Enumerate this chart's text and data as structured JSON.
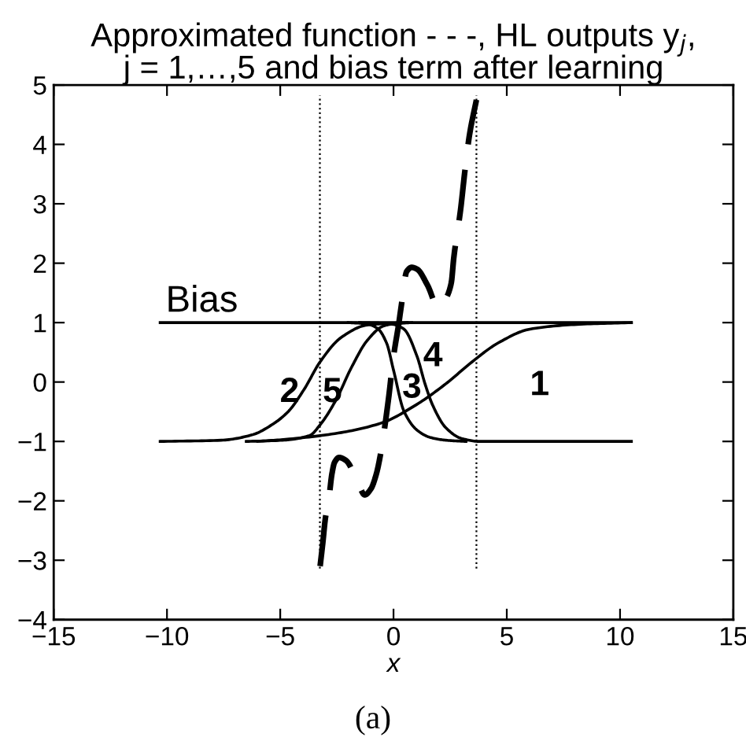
{
  "chart_data": {
    "type": "line",
    "title": "Approximated function - - -, HL outputs y$_{j}$,\nj = 1,…,5 and bias term after learning",
    "xlabel": "x",
    "xlim": [
      -15,
      15
    ],
    "xticks": [
      -15,
      -10,
      -5,
      0,
      5,
      10,
      15
    ],
    "ylim": [
      -4,
      5
    ],
    "yticks": [
      -4,
      -3,
      -2,
      -1,
      0,
      1,
      2,
      3,
      4,
      5
    ],
    "annotations": [
      "(a)"
    ],
    "series": [
      {
        "name": "Bias",
        "color": "#000000",
        "line_style": "solid",
        "x": [
          -10.3,
          10.5
        ],
        "values": [
          1,
          1
        ]
      },
      {
        "name": "1",
        "color": "#000000",
        "line_style": "solid",
        "x": [
          -6,
          -4.6,
          -2.3,
          -0.46,
          0.93,
          2.31,
          3.47,
          4.63,
          6.02,
          8.1,
          10.5
        ],
        "values": [
          -1,
          -0.96,
          -0.85,
          -0.68,
          -0.4,
          -0.03,
          0.34,
          0.66,
          0.89,
          0.97,
          1
        ]
      },
      {
        "name": "2",
        "color": "#000000",
        "line_style": "solid",
        "x": [
          -10.3,
          -7.6,
          -6.25,
          -5.33,
          -4.63,
          -3.94,
          -3.24,
          -2.31,
          -1.16,
          0,
          0.6
        ],
        "values": [
          -1,
          -0.98,
          -0.89,
          -0.71,
          -0.49,
          -0.12,
          0.34,
          0.75,
          0.96,
          0.99,
          1
        ]
      },
      {
        "name": "3",
        "color": "#000000",
        "line_style": "solid",
        "x": [
          -2,
          -1.2,
          -0.7,
          -0.3,
          0,
          0.46,
          1.04,
          1.6,
          2.31,
          3.2
        ],
        "values": [
          1,
          0.98,
          0.9,
          0.65,
          0.2,
          -0.49,
          -0.81,
          -0.93,
          -0.98,
          -1
        ]
      },
      {
        "name": "4",
        "color": "#000000",
        "line_style": "solid",
        "x": [
          -1.5,
          -0.5,
          0,
          0.46,
          1.04,
          1.39,
          1.74,
          2.31,
          3.0,
          3.8,
          10.5
        ],
        "values": [
          1,
          0.99,
          0.97,
          0.89,
          0.43,
          -0.03,
          -0.4,
          -0.77,
          -0.95,
          -1,
          -1
        ]
      },
      {
        "name": "5",
        "color": "#000000",
        "line_style": "solid",
        "x": [
          -6.5,
          -4.9,
          -3.7,
          -3.24,
          -2.55,
          -1.85,
          -1.16,
          -0.46,
          0,
          0.8
        ],
        "values": [
          -1,
          -0.98,
          -0.9,
          -0.72,
          -0.31,
          0.25,
          0.7,
          0.94,
          0.98,
          1
        ]
      },
      {
        "color": "#000000",
        "line_style": "dashed",
        "x": [
          -3.24,
          -3.12,
          -3.01,
          -2.85,
          -2.72,
          -2.6,
          -2.4,
          -2.1,
          -1.62,
          -1.27,
          -1.0,
          -0.76,
          -0.58,
          -0.23,
          0,
          0.23,
          0.35,
          0.58,
          0.8,
          1.04,
          1.5,
          1.97,
          2.3,
          2.55,
          2.66,
          2.96,
          3.15,
          3.35,
          3.66
        ],
        "values": [
          -3.1,
          -2.7,
          -2.3,
          -1.95,
          -1.55,
          -1.35,
          -1.27,
          -1.32,
          -1.64,
          -1.9,
          -1.8,
          -1.55,
          -1.23,
          -0.31,
          0.43,
          0.98,
          1.3,
          1.86,
          1.93,
          1.9,
          1.63,
          1.26,
          1.4,
          1.67,
          2.09,
          2.9,
          3.55,
          4.15,
          4.75
        ]
      },
      {
        "color": "#000000",
        "line_style": "dotted",
        "x": [
          -3.25,
          -3.25
        ],
        "values": [
          -3.14,
          4.82
        ]
      },
      {
        "color": "#000000",
        "line_style": "dotted",
        "x": [
          3.66,
          3.66
        ],
        "values": [
          -3.14,
          4.82
        ]
      }
    ]
  }
}
